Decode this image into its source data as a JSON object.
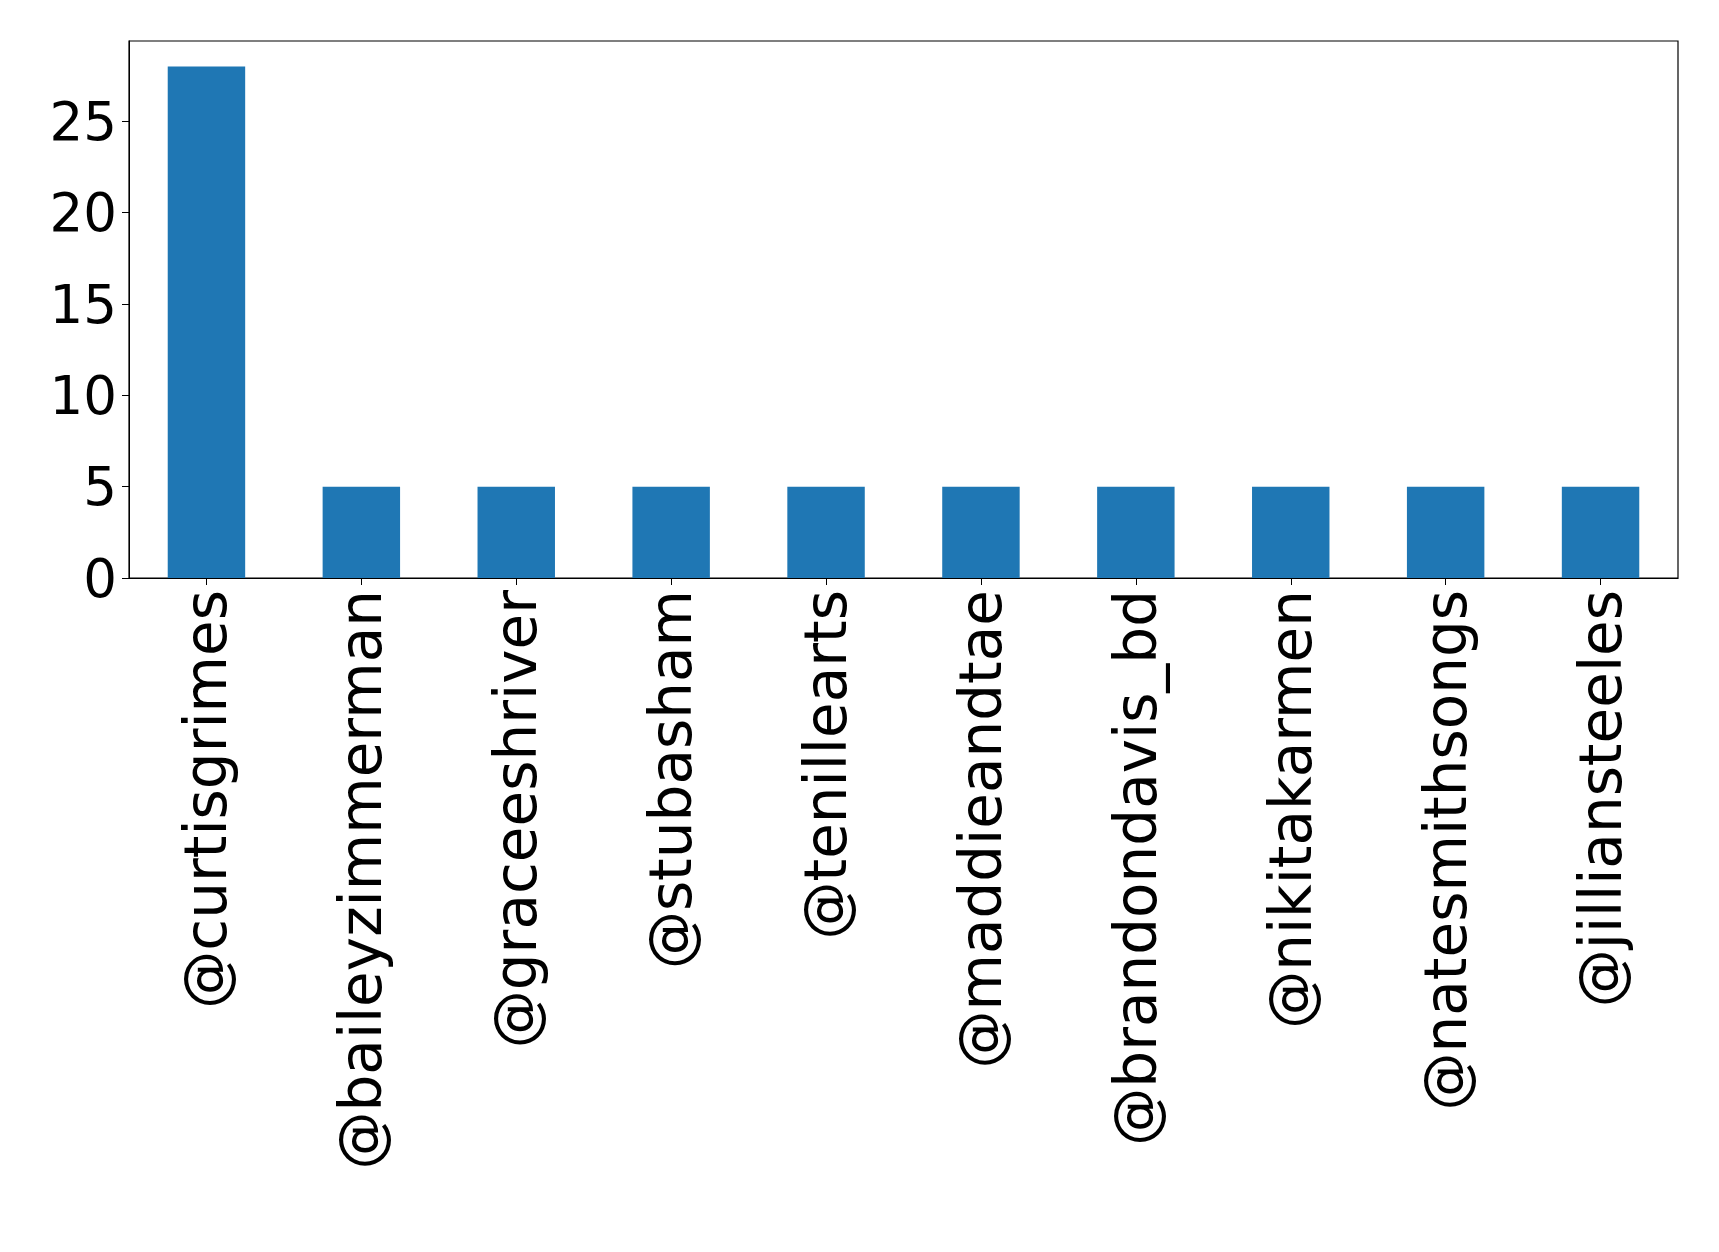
{
  "chart_data": {
    "type": "bar",
    "categories": [
      "@curtisgrimes",
      "@baileyzimmerman",
      "@graceeshriver",
      "@stubasham",
      "@tenillearts",
      "@maddieandtae",
      "@brandondavis_bd",
      "@nikitakarmen",
      "@natesmithsongs",
      "@jilliansteeles"
    ],
    "values": [
      28,
      5,
      5,
      5,
      5,
      5,
      5,
      5,
      5,
      5
    ],
    "color": "#1f77b4",
    "ylim": [
      0,
      29.4
    ],
    "yticks": [
      0,
      5,
      10,
      15,
      20,
      25
    ],
    "grid": false
  }
}
